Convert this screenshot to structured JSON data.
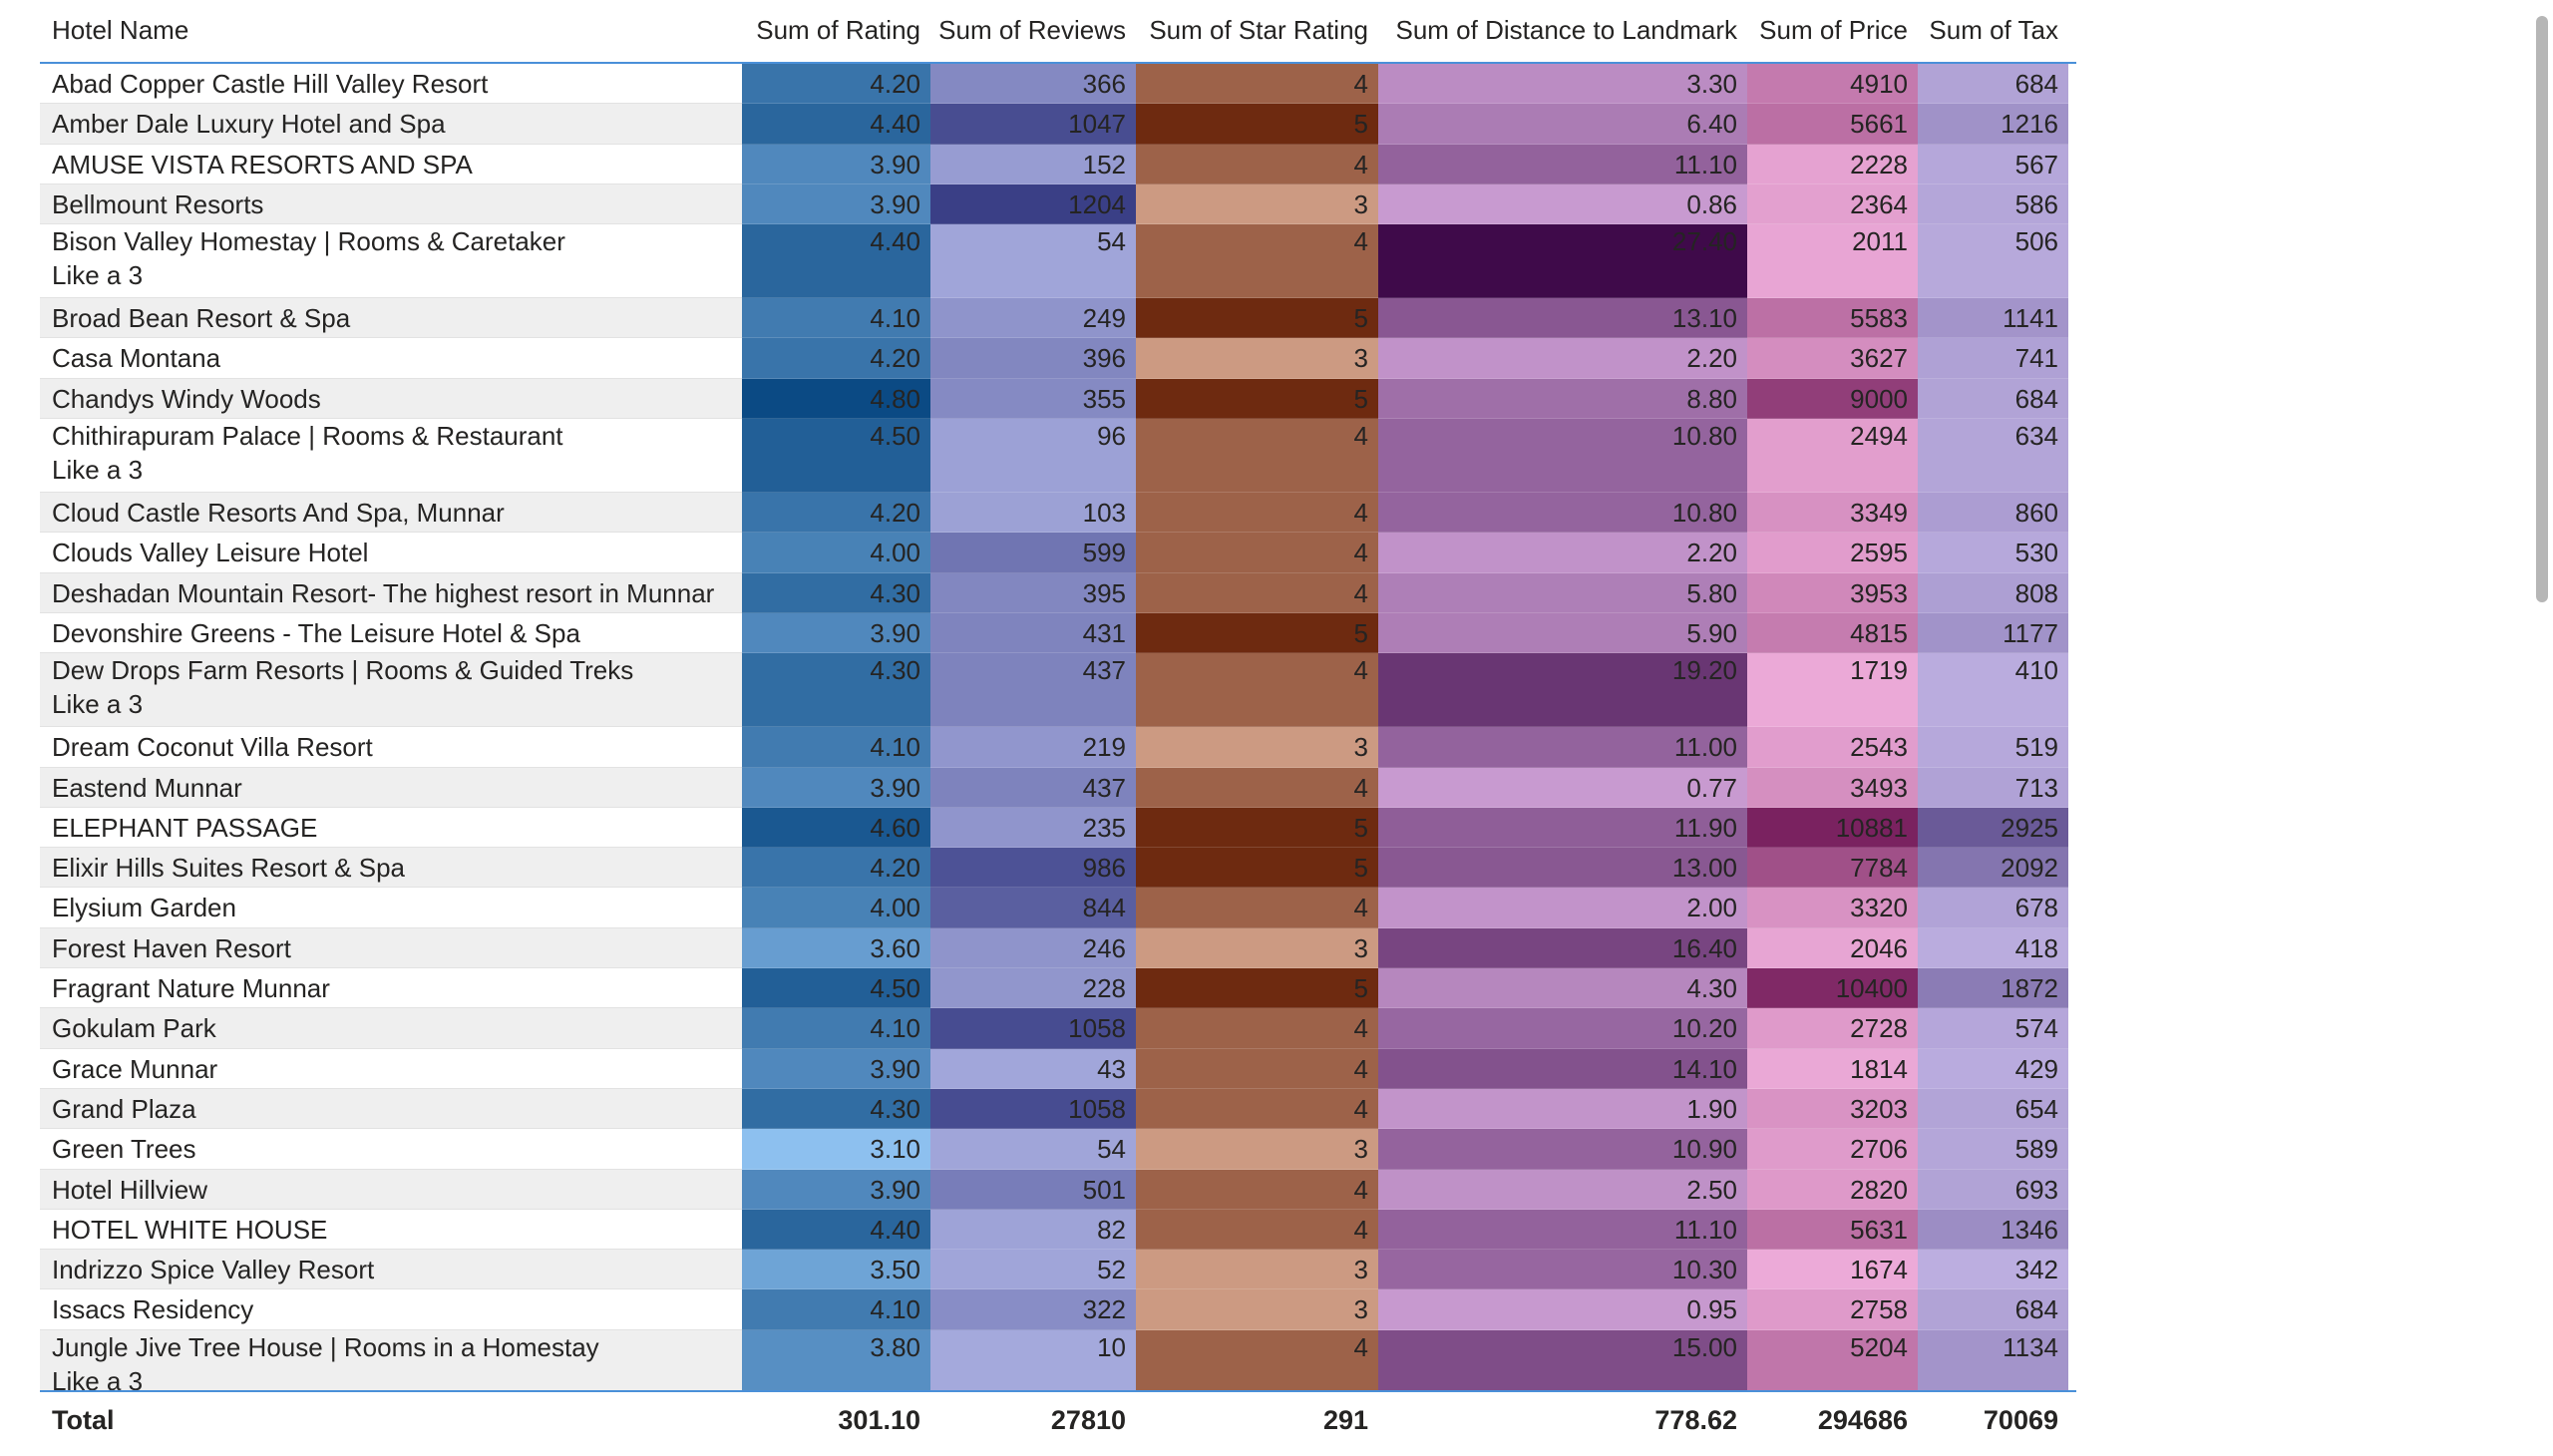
{
  "table": {
    "columns": [
      "Hotel Name",
      "Sum of Rating",
      "Sum of Reviews",
      "Sum of Star Rating",
      "Sum of Distance to Landmark",
      "Sum of Price",
      "Sum of Tax"
    ],
    "rows": [
      {
        "name": "Abad Copper Castle Hill Valley Resort",
        "rating": "4.20",
        "reviews": "366",
        "star": "4",
        "distance": "3.30",
        "price": "4910",
        "tax": "684"
      },
      {
        "name": "Amber Dale Luxury Hotel and Spa",
        "rating": "4.40",
        "reviews": "1047",
        "star": "5",
        "distance": "6.40",
        "price": "5661",
        "tax": "1216"
      },
      {
        "name": "AMUSE VISTA RESORTS AND SPA",
        "rating": "3.90",
        "reviews": "152",
        "star": "4",
        "distance": "11.10",
        "price": "2228",
        "tax": "567"
      },
      {
        "name": "Bellmount Resorts",
        "rating": "3.90",
        "reviews": "1204",
        "star": "3",
        "distance": "0.86",
        "price": "2364",
        "tax": "586"
      },
      {
        "name": "Bison Valley Homestay | Rooms & Caretaker\nLike a 3",
        "rating": "4.40",
        "reviews": "54",
        "star": "4",
        "distance": "27.40",
        "price": "2011",
        "tax": "506"
      },
      {
        "name": "Broad Bean Resort & Spa",
        "rating": "4.10",
        "reviews": "249",
        "star": "5",
        "distance": "13.10",
        "price": "5583",
        "tax": "1141"
      },
      {
        "name": "Casa Montana",
        "rating": "4.20",
        "reviews": "396",
        "star": "3",
        "distance": "2.20",
        "price": "3627",
        "tax": "741"
      },
      {
        "name": "Chandys Windy Woods",
        "rating": "4.80",
        "reviews": "355",
        "star": "5",
        "distance": "8.80",
        "price": "9000",
        "tax": "684"
      },
      {
        "name": "Chithirapuram Palace | Rooms & Restaurant\nLike a 3",
        "rating": "4.50",
        "reviews": "96",
        "star": "4",
        "distance": "10.80",
        "price": "2494",
        "tax": "634"
      },
      {
        "name": "Cloud Castle Resorts And Spa, Munnar",
        "rating": "4.20",
        "reviews": "103",
        "star": "4",
        "distance": "10.80",
        "price": "3349",
        "tax": "860"
      },
      {
        "name": "Clouds Valley Leisure Hotel",
        "rating": "4.00",
        "reviews": "599",
        "star": "4",
        "distance": "2.20",
        "price": "2595",
        "tax": "530"
      },
      {
        "name": "Deshadan Mountain Resort- The highest resort in Munnar",
        "rating": "4.30",
        "reviews": "395",
        "star": "4",
        "distance": "5.80",
        "price": "3953",
        "tax": "808"
      },
      {
        "name": "Devonshire Greens - The Leisure Hotel & Spa",
        "rating": "3.90",
        "reviews": "431",
        "star": "5",
        "distance": "5.90",
        "price": "4815",
        "tax": "1177"
      },
      {
        "name": "Dew Drops Farm Resorts | Rooms & Guided Treks\nLike a 3",
        "rating": "4.30",
        "reviews": "437",
        "star": "4",
        "distance": "19.20",
        "price": "1719",
        "tax": "410"
      },
      {
        "name": "Dream Coconut Villa Resort",
        "rating": "4.10",
        "reviews": "219",
        "star": "3",
        "distance": "11.00",
        "price": "2543",
        "tax": "519"
      },
      {
        "name": "Eastend Munnar",
        "rating": "3.90",
        "reviews": "437",
        "star": "4",
        "distance": "0.77",
        "price": "3493",
        "tax": "713"
      },
      {
        "name": "ELEPHANT PASSAGE",
        "rating": "4.60",
        "reviews": "235",
        "star": "5",
        "distance": "11.90",
        "price": "10881",
        "tax": "2925"
      },
      {
        "name": "Elixir Hills Suites Resort & Spa",
        "rating": "4.20",
        "reviews": "986",
        "star": "5",
        "distance": "13.00",
        "price": "7784",
        "tax": "2092"
      },
      {
        "name": "Elysium Garden",
        "rating": "4.00",
        "reviews": "844",
        "star": "4",
        "distance": "2.00",
        "price": "3320",
        "tax": "678"
      },
      {
        "name": "Forest Haven Resort",
        "rating": "3.60",
        "reviews": "246",
        "star": "3",
        "distance": "16.40",
        "price": "2046",
        "tax": "418"
      },
      {
        "name": "Fragrant Nature Munnar",
        "rating": "4.50",
        "reviews": "228",
        "star": "5",
        "distance": "4.30",
        "price": "10400",
        "tax": "1872"
      },
      {
        "name": "Gokulam Park",
        "rating": "4.10",
        "reviews": "1058",
        "star": "4",
        "distance": "10.20",
        "price": "2728",
        "tax": "574"
      },
      {
        "name": "Grace Munnar",
        "rating": "3.90",
        "reviews": "43",
        "star": "4",
        "distance": "14.10",
        "price": "1814",
        "tax": "429"
      },
      {
        "name": "Grand Plaza",
        "rating": "4.30",
        "reviews": "1058",
        "star": "4",
        "distance": "1.90",
        "price": "3203",
        "tax": "654"
      },
      {
        "name": "Green Trees",
        "rating": "3.10",
        "reviews": "54",
        "star": "3",
        "distance": "10.90",
        "price": "2706",
        "tax": "589"
      },
      {
        "name": "Hotel Hillview",
        "rating": "3.90",
        "reviews": "501",
        "star": "4",
        "distance": "2.50",
        "price": "2820",
        "tax": "693"
      },
      {
        "name": "HOTEL WHITE HOUSE",
        "rating": "4.40",
        "reviews": "82",
        "star": "4",
        "distance": "11.10",
        "price": "5631",
        "tax": "1346"
      },
      {
        "name": "Indrizzo Spice Valley Resort",
        "rating": "3.50",
        "reviews": "52",
        "star": "3",
        "distance": "10.30",
        "price": "1674",
        "tax": "342"
      },
      {
        "name": "Issacs Residency",
        "rating": "4.10",
        "reviews": "322",
        "star": "3",
        "distance": "0.95",
        "price": "2758",
        "tax": "684"
      },
      {
        "name": "Jungle Jive Tree House | Rooms in a Homestay\nLike a 3",
        "rating": "3.80",
        "reviews": "10",
        "star": "4",
        "distance": "15.00",
        "price": "5204",
        "tax": "1134"
      }
    ],
    "total": {
      "label": "Total",
      "rating": "301.10",
      "reviews": "27810",
      "star": "291",
      "distance": "778.62",
      "price": "294686",
      "tax": "70069"
    }
  },
  "colors": {
    "rating": [
      "#8dc0ef",
      "#0b4a84"
    ],
    "reviews": [
      "#a4a9dc",
      "#3a3f86"
    ],
    "star": [
      "#cc9a82",
      "#6e2a10"
    ],
    "distance": [
      "#c89ad0",
      "#3f0a4a"
    ],
    "price": [
      "#ecaad8",
      "#7a2260"
    ],
    "tax": [
      "#bcaee0",
      "#6a5a98"
    ],
    "header_rule": "#4a90d9"
  }
}
